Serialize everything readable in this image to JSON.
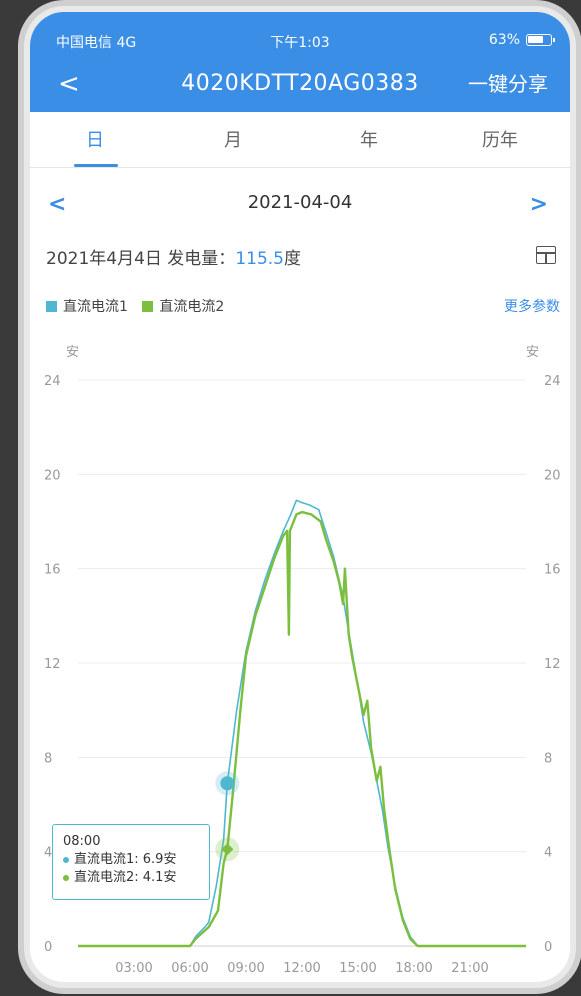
{
  "status": {
    "carrier": "中国电信  4G",
    "time": "下午1:03",
    "battery": "63%"
  },
  "nav": {
    "back": "<",
    "title": "4020KDTT20AG0383",
    "share": "一键分享"
  },
  "tabs": [
    "日",
    "月",
    "年",
    "历年"
  ],
  "date": {
    "prev": "<",
    "value": "2021-04-04",
    "next": ">"
  },
  "summary": {
    "label": "2021年4月4日 发电量：",
    "value": "115.5",
    "unit": "度"
  },
  "legend": {
    "series1": "直流电流1",
    "series2": "直流电流2",
    "more": "更多参数"
  },
  "colors": {
    "accent": "#3a8ee6",
    "series1": "#4fb7cf",
    "series2": "#7cbf3e"
  },
  "tooltip": {
    "time": "08:00",
    "line1": "直流电流1: 6.9安",
    "line2": "直流电流2: 4.1安"
  },
  "chart_data": {
    "type": "line",
    "y_unit_left": "安",
    "y_unit_right": "安",
    "ylim": [
      0,
      24
    ],
    "yticks": [
      0,
      4,
      8,
      12,
      16,
      20,
      24
    ],
    "yticks_right": [
      0,
      4,
      8,
      12,
      16,
      20,
      24
    ],
    "xlim": [
      0,
      24
    ],
    "xtick_labels": [
      "03:00",
      "06:00",
      "09:00",
      "12:00",
      "15:00",
      "18:00",
      "21:00"
    ],
    "xticks": [
      3,
      6,
      9,
      12,
      15,
      18,
      21
    ],
    "series": [
      {
        "name": "直流电流1",
        "color": "#4fb7cf",
        "points": [
          [
            0,
            0
          ],
          [
            6,
            0
          ],
          [
            6.3,
            0.4
          ],
          [
            6.8,
            0.8
          ],
          [
            7,
            1.0
          ],
          [
            7.4,
            2.5
          ],
          [
            7.8,
            4.5
          ],
          [
            8,
            6.9
          ],
          [
            8.5,
            10
          ],
          [
            9,
            12.5
          ],
          [
            9.5,
            14.2
          ],
          [
            10,
            15.5
          ],
          [
            10.5,
            16.6
          ],
          [
            11,
            17.6
          ],
          [
            11.4,
            18.3
          ],
          [
            11.7,
            18.9
          ],
          [
            12,
            18.8
          ],
          [
            12.4,
            18.7
          ],
          [
            12.9,
            18.5
          ],
          [
            13.3,
            17.5
          ],
          [
            13.7,
            16.5
          ],
          [
            14,
            15.5
          ],
          [
            14.2,
            14.8
          ],
          [
            14.4,
            13.8
          ],
          [
            14.7,
            12.4
          ],
          [
            15,
            11
          ],
          [
            15.3,
            9.5
          ],
          [
            15.7,
            8.2
          ],
          [
            16,
            7
          ],
          [
            16.3,
            5.8
          ],
          [
            16.6,
            4.2
          ],
          [
            17,
            2.5
          ],
          [
            17.4,
            1.2
          ],
          [
            17.8,
            0.4
          ],
          [
            18.2,
            0
          ],
          [
            24,
            0
          ]
        ]
      },
      {
        "name": "直流电流2",
        "color": "#7cbf3e",
        "points": [
          [
            0,
            0
          ],
          [
            6,
            0
          ],
          [
            6.3,
            0.3
          ],
          [
            7,
            0.8
          ],
          [
            7.5,
            1.5
          ],
          [
            7.8,
            3.5
          ],
          [
            8,
            4.1
          ],
          [
            8.3,
            6.5
          ],
          [
            8.7,
            10
          ],
          [
            9,
            12.3
          ],
          [
            9.5,
            14
          ],
          [
            10,
            15.2
          ],
          [
            10.5,
            16.4
          ],
          [
            11,
            17.4
          ],
          [
            11.2,
            17.6
          ],
          [
            11.3,
            13.2
          ],
          [
            11.35,
            17.6
          ],
          [
            11.7,
            18.3
          ],
          [
            12,
            18.4
          ],
          [
            12.5,
            18.3
          ],
          [
            13,
            18
          ],
          [
            13.3,
            17.2
          ],
          [
            13.7,
            16.3
          ],
          [
            14,
            15.4
          ],
          [
            14.2,
            14.5
          ],
          [
            14.3,
            16.0
          ],
          [
            14.5,
            13.2
          ],
          [
            14.7,
            12.2
          ],
          [
            15,
            11
          ],
          [
            15.3,
            9.8
          ],
          [
            15.5,
            10.4
          ],
          [
            15.7,
            8.4
          ],
          [
            16,
            7
          ],
          [
            16.2,
            7.6
          ],
          [
            16.4,
            5.8
          ],
          [
            16.7,
            4.0
          ],
          [
            17,
            2.4
          ],
          [
            17.4,
            1.1
          ],
          [
            17.8,
            0.3
          ],
          [
            18.2,
            0
          ],
          [
            24,
            0
          ]
        ]
      }
    ],
    "highlight_x": 8,
    "highlight_values": [
      6.9,
      4.1
    ]
  }
}
